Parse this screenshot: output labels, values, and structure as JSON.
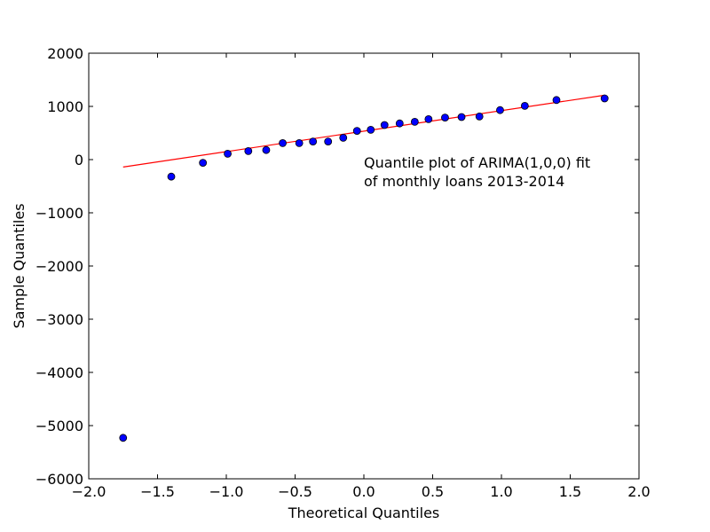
{
  "chart_data": {
    "type": "scatter",
    "title": "",
    "xlabel": "Theoretical Quantiles",
    "ylabel": "Sample Quantiles",
    "xlim": [
      -2.0,
      2.0
    ],
    "ylim": [
      -6000,
      2000
    ],
    "xticks": [
      -2.0,
      -1.5,
      -1.0,
      -0.5,
      0.0,
      0.5,
      1.0,
      1.5,
      2.0
    ],
    "xtick_labels": [
      "−2.0",
      "−1.5",
      "−1.0",
      "−0.5",
      "0.0",
      "0.5",
      "1.0",
      "1.5",
      "2.0"
    ],
    "yticks": [
      -6000,
      -5000,
      -4000,
      -3000,
      -2000,
      -1000,
      0,
      1000,
      2000
    ],
    "ytick_labels": [
      "−6000",
      "−5000",
      "−4000",
      "−3000",
      "−2000",
      "−1000",
      "0",
      "1000",
      "2000"
    ],
    "grid": false,
    "series": [
      {
        "type": "scatter",
        "color": "#0000ff",
        "x": [
          -1.75,
          -1.4,
          -1.17,
          -0.99,
          -0.84,
          -0.71,
          -0.59,
          -0.47,
          -0.37,
          -0.26,
          -0.15,
          -0.05,
          0.05,
          0.15,
          0.26,
          0.37,
          0.47,
          0.59,
          0.71,
          0.84,
          0.99,
          1.17,
          1.4,
          1.75
        ],
        "y": [
          -5230,
          -320,
          -60,
          110,
          160,
          180,
          310,
          310,
          340,
          340,
          410,
          540,
          560,
          650,
          680,
          710,
          760,
          790,
          800,
          810,
          930,
          1010,
          1120,
          1150
        ]
      },
      {
        "type": "line",
        "color": "#ff0000",
        "x": [
          -1.75,
          1.75
        ],
        "y": [
          -140,
          1210
        ]
      }
    ],
    "annotation": {
      "line1": "Quantile plot of ARIMA(1,0,0) fit",
      "line2": "of monthly loans 2013-2014"
    }
  }
}
